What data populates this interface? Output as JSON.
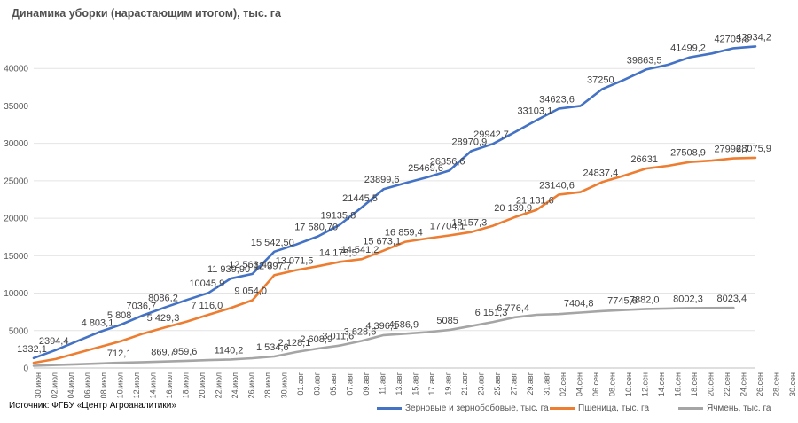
{
  "chart_data": {
    "type": "line",
    "title": "Динамика уборки (нарастающим итогом), тыс. га",
    "source": "Источник: ФГБУ «Центр Агроаналитики»",
    "ylim": [
      0,
      45000
    ],
    "yticks": [
      0,
      5000,
      10000,
      15000,
      20000,
      25000,
      30000,
      35000,
      40000
    ],
    "x_tick_labels": [
      "30.июн",
      "02.июл",
      "04.июл",
      "06.июл",
      "08.июл",
      "10.июл",
      "12.июл",
      "14.июл",
      "16.июл",
      "18.июл",
      "20.июл",
      "22.июл",
      "24.июл",
      "26.июл",
      "28.июл",
      "30.июл",
      "01.авг",
      "03.авг",
      "05.авг",
      "07.авг",
      "09.авг",
      "11.авг",
      "13.авг",
      "15.авг",
      "17.авг",
      "19.авг",
      "21.авг",
      "23.авг",
      "25.авг",
      "27.авг",
      "29.авг",
      "31.авг",
      "02.сен",
      "04.сен",
      "06.сен",
      "08.сен",
      "10.сен",
      "12.сен",
      "14.сен",
      "16.сен",
      "18.сен",
      "20.сен",
      "22.сен",
      "24.сен",
      "26.сен",
      "28.сен",
      "30.сен"
    ],
    "grid": true,
    "legend_position": "bottom-right",
    "series": [
      {
        "name": "Зерновые и зернобобовые, тыс. га",
        "color": "#4472C4",
        "points": [
          [
            0,
            1332.1
          ],
          [
            2,
            2394.4
          ],
          [
            4,
            3600
          ],
          [
            6,
            4803.1
          ],
          [
            8,
            5808
          ],
          [
            10,
            7036.7
          ],
          [
            12,
            8086.2
          ],
          [
            14,
            9100
          ],
          [
            16,
            10045.9
          ],
          [
            18,
            11939.9
          ],
          [
            20,
            12563.4
          ],
          [
            22,
            15542.5
          ],
          [
            24,
            16500
          ],
          [
            26,
            17580.7
          ],
          [
            28,
            19135.8
          ],
          [
            30,
            21445.5
          ],
          [
            32,
            23899.6
          ],
          [
            34,
            24700
          ],
          [
            36,
            25469.6
          ],
          [
            38,
            26356.6
          ],
          [
            40,
            28970.9
          ],
          [
            42,
            29942.7
          ],
          [
            44,
            31500
          ],
          [
            46,
            33103.1
          ],
          [
            48,
            34623.6
          ],
          [
            50,
            35000
          ],
          [
            52,
            37250
          ],
          [
            54,
            38500
          ],
          [
            56,
            39863.5
          ],
          [
            58,
            40500
          ],
          [
            60,
            41499.2
          ],
          [
            62,
            42000
          ],
          [
            64,
            42703.8
          ],
          [
            66,
            42934.2
          ]
        ],
        "labels": [
          [
            0,
            1332.1,
            "1332,1"
          ],
          [
            2,
            2394.4,
            "2394,4"
          ],
          [
            6,
            4803.1,
            "4 803,1"
          ],
          [
            8,
            5808,
            "5 808"
          ],
          [
            10,
            7036.7,
            "7036,7"
          ],
          [
            12,
            8086.2,
            "8086,2"
          ],
          [
            16,
            10045.9,
            "10045,9"
          ],
          [
            18,
            11939.9,
            "11 939,90"
          ],
          [
            20,
            12563.4,
            "12 563,40"
          ],
          [
            22,
            15542.5,
            "15 542,50"
          ],
          [
            26,
            17580.7,
            "17 580,70"
          ],
          [
            28,
            19135.8,
            "19135,8"
          ],
          [
            30,
            21445.5,
            "21445,5"
          ],
          [
            32,
            23899.6,
            "23899,6"
          ],
          [
            36,
            25469.6,
            "25469,6"
          ],
          [
            38,
            26356.6,
            "26356,6"
          ],
          [
            40,
            28970.9,
            "28970,9"
          ],
          [
            42,
            29942.7,
            "29942,7"
          ],
          [
            46,
            33103.1,
            "33103,1"
          ],
          [
            48,
            34623.6,
            "34623,6"
          ],
          [
            52,
            37250,
            "37250"
          ],
          [
            56,
            39863.5,
            "39863,5"
          ],
          [
            60,
            41499.2,
            "41499,2"
          ],
          [
            64,
            42703.8,
            "42703,8"
          ],
          [
            66,
            42934.2,
            "42934,2"
          ]
        ]
      },
      {
        "name": "Пшеница, тыс. га",
        "color": "#ED7D31",
        "points": [
          [
            0,
            700
          ],
          [
            2,
            1200
          ],
          [
            4,
            2000
          ],
          [
            6,
            2800
          ],
          [
            8,
            3600
          ],
          [
            10,
            4600
          ],
          [
            12,
            5429.3
          ],
          [
            14,
            6200
          ],
          [
            16,
            7116
          ],
          [
            18,
            8000
          ],
          [
            20,
            9054
          ],
          [
            22,
            12397.7
          ],
          [
            24,
            13071.5
          ],
          [
            26,
            13600
          ],
          [
            28,
            14175.5
          ],
          [
            30,
            14541.2
          ],
          [
            32,
            15673.1
          ],
          [
            34,
            16859.4
          ],
          [
            36,
            17300
          ],
          [
            38,
            17704.1
          ],
          [
            40,
            18157.3
          ],
          [
            42,
            19000
          ],
          [
            44,
            20139.9
          ],
          [
            46,
            21131.6
          ],
          [
            48,
            23140.6
          ],
          [
            50,
            23500
          ],
          [
            52,
            24837.4
          ],
          [
            54,
            25700
          ],
          [
            56,
            26631
          ],
          [
            58,
            27000
          ],
          [
            60,
            27508.9
          ],
          [
            62,
            27700
          ],
          [
            64,
            27996.7
          ],
          [
            66,
            28075.9
          ]
        ],
        "labels": [
          [
            12,
            5429.3,
            "5 429,3"
          ],
          [
            16,
            7116,
            "7 116,0"
          ],
          [
            20,
            9054,
            "9 054,0"
          ],
          [
            22,
            12397.7,
            "12 397,7"
          ],
          [
            24,
            13071.5,
            "13 071,5"
          ],
          [
            28,
            14175.5,
            "14 175,5"
          ],
          [
            30,
            14541.2,
            "14 541,2"
          ],
          [
            32,
            15673.1,
            "15 673,1"
          ],
          [
            34,
            16859.4,
            "16 859,4"
          ],
          [
            38,
            17704.1,
            "17704,1"
          ],
          [
            40,
            18157.3,
            "18157,3"
          ],
          [
            44,
            20139.9,
            "20 139,9"
          ],
          [
            46,
            21131.6,
            "21 131,6"
          ],
          [
            48,
            23140.6,
            "23140,6"
          ],
          [
            52,
            24837.4,
            "24837,4"
          ],
          [
            56,
            26631,
            "26631"
          ],
          [
            60,
            27508.9,
            "27508,9"
          ],
          [
            64,
            27996.7,
            "27996,7"
          ],
          [
            66,
            28075.9,
            "28075,9"
          ]
        ]
      },
      {
        "name": "Ячмень, тыс. га",
        "color": "#A5A5A5",
        "points": [
          [
            0,
            300
          ],
          [
            2,
            400
          ],
          [
            4,
            500
          ],
          [
            6,
            600
          ],
          [
            8,
            712.1
          ],
          [
            10,
            780
          ],
          [
            12,
            869.7
          ],
          [
            14,
            959.6
          ],
          [
            16,
            1050
          ],
          [
            18,
            1140.2
          ],
          [
            20,
            1300
          ],
          [
            22,
            1534.6
          ],
          [
            24,
            2128.1
          ],
          [
            26,
            2608.9
          ],
          [
            28,
            3011.6
          ],
          [
            30,
            3628.6
          ],
          [
            32,
            4396.1
          ],
          [
            34,
            4586.9
          ],
          [
            36,
            4800
          ],
          [
            38,
            5085
          ],
          [
            40,
            5600
          ],
          [
            42,
            6151.3
          ],
          [
            44,
            6776.4
          ],
          [
            46,
            7100
          ],
          [
            48,
            7200
          ],
          [
            50,
            7404.8
          ],
          [
            52,
            7600
          ],
          [
            54,
            7745.6
          ],
          [
            56,
            7882
          ],
          [
            58,
            7950
          ],
          [
            60,
            8002.3
          ],
          [
            62,
            8015
          ],
          [
            64,
            8023.4
          ]
        ],
        "labels": [
          [
            8,
            712.1,
            "712,1"
          ],
          [
            12,
            869.7,
            "869,7"
          ],
          [
            14,
            959.6,
            "959,6"
          ],
          [
            18,
            1140.2,
            "1140,2"
          ],
          [
            22,
            1534.6,
            "1 534,6"
          ],
          [
            24,
            2128.1,
            "2 128,1"
          ],
          [
            26,
            2608.9,
            "2 608,9"
          ],
          [
            28,
            3011.6,
            "3 011,6"
          ],
          [
            30,
            3628.6,
            "3 628,6"
          ],
          [
            32,
            4396.1,
            "4 396,1"
          ],
          [
            34,
            4586.9,
            "4586,9"
          ],
          [
            38,
            5085,
            "5085"
          ],
          [
            42,
            6151.3,
            "6 151,3"
          ],
          [
            44,
            6776.4,
            "6 776,4"
          ],
          [
            50,
            7404.8,
            "7404,8"
          ],
          [
            54,
            7745.6,
            "7745,6"
          ],
          [
            56,
            7882,
            "7882,0"
          ],
          [
            60,
            8002.3,
            "8002,3"
          ],
          [
            64,
            8023.4,
            "8023,4"
          ]
        ]
      }
    ]
  }
}
